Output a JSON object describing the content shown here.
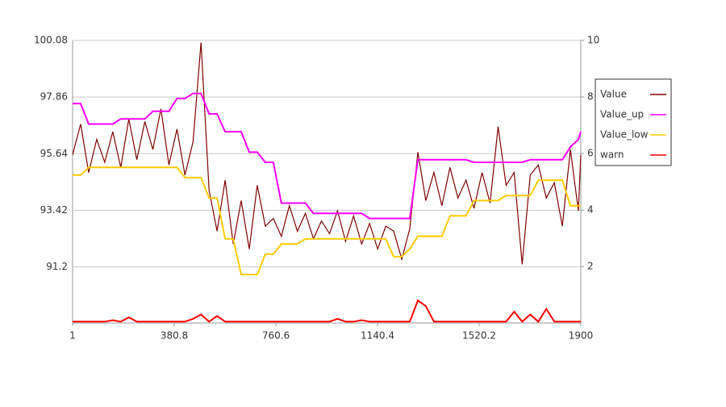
{
  "chart_data": {
    "type": "line",
    "x": [
      1,
      31,
      61,
      91,
      121,
      151,
      181,
      211,
      241,
      271,
      301,
      331,
      361,
      391,
      421,
      451,
      481,
      511,
      541,
      571,
      601,
      631,
      661,
      691,
      721,
      751,
      781,
      811,
      841,
      871,
      901,
      931,
      961,
      991,
      1021,
      1051,
      1081,
      1111,
      1141,
      1171,
      1201,
      1231,
      1261,
      1291,
      1321,
      1351,
      1381,
      1411,
      1441,
      1471,
      1501,
      1531,
      1561,
      1591,
      1621,
      1651,
      1681,
      1711,
      1741,
      1771,
      1801,
      1831,
      1861,
      1891,
      1900
    ],
    "series": [
      {
        "name": "Value",
        "color": "#800000",
        "values": [
          95.6,
          96.8,
          94.9,
          96.2,
          95.3,
          96.5,
          95.1,
          97.0,
          95.4,
          96.9,
          95.8,
          97.4,
          95.2,
          96.6,
          94.8,
          96.1,
          100.0,
          94.2,
          92.6,
          94.6,
          92.1,
          93.8,
          91.9,
          94.4,
          92.8,
          93.1,
          92.4,
          93.6,
          92.6,
          93.3,
          92.3,
          93.0,
          92.5,
          93.4,
          92.2,
          93.2,
          92.1,
          92.9,
          91.9,
          92.8,
          92.6,
          91.5,
          92.7,
          95.7,
          93.8,
          94.9,
          93.6,
          95.1,
          93.9,
          94.6,
          93.5,
          94.9,
          93.7,
          96.7,
          94.4,
          94.9,
          91.3,
          94.8,
          95.2,
          93.9,
          94.5,
          92.8,
          95.8,
          93.4,
          95.6
        ]
      },
      {
        "name": "Value_up",
        "color": "#ff00ff",
        "values": [
          97.6,
          97.6,
          96.8,
          96.8,
          96.8,
          96.8,
          97.0,
          97.0,
          97.0,
          97.0,
          97.3,
          97.3,
          97.3,
          97.8,
          97.8,
          98.0,
          98.0,
          97.2,
          97.2,
          96.5,
          96.5,
          96.5,
          95.7,
          95.7,
          95.3,
          95.3,
          93.7,
          93.7,
          93.7,
          93.7,
          93.3,
          93.3,
          93.3,
          93.3,
          93.3,
          93.3,
          93.3,
          93.1,
          93.1,
          93.1,
          93.1,
          93.1,
          93.1,
          95.4,
          95.4,
          95.4,
          95.4,
          95.4,
          95.4,
          95.4,
          95.3,
          95.3,
          95.3,
          95.3,
          95.3,
          95.3,
          95.3,
          95.4,
          95.4,
          95.4,
          95.4,
          95.4,
          95.9,
          96.2,
          96.5
        ]
      },
      {
        "name": "Value_low",
        "color": "#ffcc00",
        "values": [
          94.8,
          94.8,
          95.1,
          95.1,
          95.1,
          95.1,
          95.1,
          95.1,
          95.1,
          95.1,
          95.1,
          95.1,
          95.1,
          95.1,
          94.7,
          94.7,
          94.7,
          93.9,
          93.9,
          92.3,
          92.3,
          90.9,
          90.9,
          90.9,
          91.7,
          91.7,
          92.1,
          92.1,
          92.1,
          92.3,
          92.3,
          92.3,
          92.3,
          92.3,
          92.3,
          92.3,
          92.3,
          92.3,
          92.3,
          92.3,
          91.6,
          91.6,
          91.9,
          92.4,
          92.4,
          92.4,
          92.4,
          93.2,
          93.2,
          93.2,
          93.8,
          93.8,
          93.8,
          93.8,
          94.0,
          94.0,
          94.0,
          94.0,
          94.6,
          94.6,
          94.6,
          94.6,
          93.6,
          93.6,
          93.6
        ]
      },
      {
        "name": "warn",
        "color": "#ff0000",
        "axis": "y2",
        "values": [
          0.05,
          0.05,
          0.05,
          0.05,
          0.05,
          0.1,
          0.05,
          0.2,
          0.05,
          0.05,
          0.05,
          0.05,
          0.05,
          0.05,
          0.05,
          0.15,
          0.3,
          0.05,
          0.25,
          0.05,
          0.05,
          0.05,
          0.05,
          0.05,
          0.05,
          0.05,
          0.05,
          0.05,
          0.05,
          0.05,
          0.05,
          0.05,
          0.05,
          0.15,
          0.05,
          0.05,
          0.1,
          0.05,
          0.05,
          0.05,
          0.05,
          0.05,
          0.05,
          0.8,
          0.6,
          0.05,
          0.05,
          0.05,
          0.05,
          0.05,
          0.05,
          0.05,
          0.05,
          0.05,
          0.05,
          0.4,
          0.05,
          0.3,
          0.05,
          0.5,
          0.05,
          0.05,
          0.05,
          0.05,
          0.05
        ]
      }
    ],
    "xlim": [
      1,
      1900
    ],
    "xticks": [
      1,
      380.8,
      760.6,
      1140.4,
      1520.2,
      1900
    ],
    "ylim": [
      89.0,
      100.08
    ],
    "yticks": [
      91.2,
      93.42,
      95.64,
      97.86,
      100.08
    ],
    "y2lim": [
      0,
      10
    ],
    "y2ticks": [
      2,
      4,
      6,
      8,
      10
    ],
    "grid": true
  }
}
